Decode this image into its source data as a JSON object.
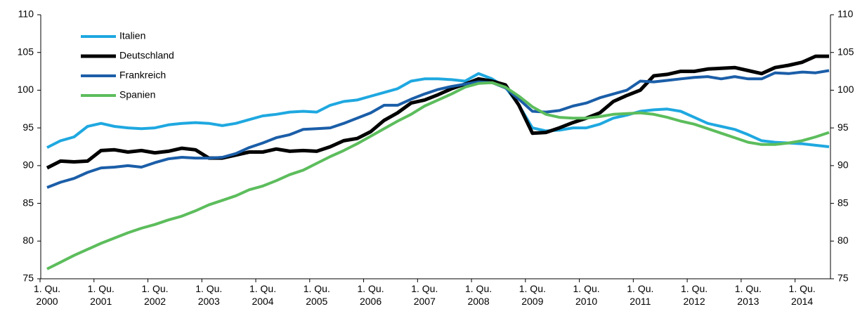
{
  "chart_data": {
    "type": "line",
    "categories": [
      "1. Qu. 2000",
      null,
      null,
      null,
      "1. Qu. 2001",
      null,
      null,
      null,
      "1. Qu. 2002",
      null,
      null,
      null,
      "1. Qu. 2003",
      null,
      null,
      null,
      "1. Qu. 2004",
      null,
      null,
      null,
      "1. Qu. 2005",
      null,
      null,
      null,
      "1. Qu. 2006",
      null,
      null,
      null,
      "1. Qu. 2007",
      null,
      null,
      null,
      "1. Qu. 2008",
      null,
      null,
      null,
      "1. Qu. 2009",
      null,
      null,
      null,
      "1. Qu. 2010",
      null,
      null,
      null,
      "1. Qu. 2011",
      null,
      null,
      null,
      "1. Qu. 2012",
      null,
      null,
      null,
      "1. Qu. 2013",
      null,
      null,
      null,
      "1. Qu. 2014",
      null,
      null
    ],
    "series": [
      {
        "name": "Italien",
        "color": "#1fa8e0",
        "values": [
          92.4,
          93.3,
          93.8,
          95.2,
          95.6,
          95.2,
          95.0,
          94.9,
          95.0,
          95.4,
          95.6,
          95.7,
          95.6,
          95.3,
          95.6,
          96.1,
          96.6,
          96.8,
          97.1,
          97.2,
          97.1,
          98.0,
          98.5,
          98.7,
          99.2,
          99.7,
          100.2,
          101.2,
          101.5,
          101.5,
          101.4,
          101.2,
          102.2,
          101.5,
          100.4,
          98.0,
          95.0,
          94.6,
          94.7,
          95.0,
          95.0,
          95.5,
          96.3,
          96.7,
          97.2,
          97.4,
          97.5,
          97.2,
          96.4,
          95.6,
          95.2,
          94.8,
          94.1,
          93.3,
          93.1,
          93.0,
          92.9,
          92.7,
          92.5
        ]
      },
      {
        "name": "Deutschland",
        "color": "#000000",
        "values": [
          89.7,
          90.6,
          90.5,
          90.6,
          92.0,
          92.1,
          91.8,
          92.0,
          91.7,
          91.9,
          92.3,
          92.1,
          91.0,
          91.0,
          91.4,
          91.8,
          91.8,
          92.2,
          91.9,
          92.0,
          91.9,
          92.5,
          93.3,
          93.6,
          94.5,
          96.0,
          97.0,
          98.3,
          98.7,
          99.4,
          100.2,
          100.8,
          101.5,
          101.2,
          100.7,
          98.0,
          94.3,
          94.4,
          95.0,
          95.7,
          96.3,
          97.0,
          98.5,
          99.3,
          100.0,
          101.9,
          102.1,
          102.5,
          102.5,
          102.8,
          102.9,
          103.0,
          102.6,
          102.2,
          103.0,
          103.3,
          103.7,
          104.5,
          104.5
        ]
      },
      {
        "name": "Frankreich",
        "color": "#1b5ea8",
        "values": [
          87.1,
          87.8,
          88.3,
          89.1,
          89.7,
          89.8,
          90.0,
          89.8,
          90.4,
          90.9,
          91.1,
          91.0,
          91.0,
          91.1,
          91.6,
          92.4,
          93.0,
          93.7,
          94.1,
          94.8,
          94.9,
          95.0,
          95.6,
          96.3,
          97.0,
          98.0,
          98.0,
          98.8,
          99.5,
          100.1,
          100.5,
          100.8,
          101.1,
          101.0,
          100.3,
          98.8,
          97.2,
          97.1,
          97.3,
          97.9,
          98.3,
          99.0,
          99.5,
          100.0,
          101.2,
          101.1,
          101.3,
          101.5,
          101.7,
          101.8,
          101.5,
          101.8,
          101.5,
          101.5,
          102.3,
          102.2,
          102.4,
          102.3,
          102.6
        ]
      },
      {
        "name": "Spanien",
        "color": "#5cbd5c",
        "values": [
          76.3,
          77.2,
          78.1,
          78.9,
          79.7,
          80.4,
          81.1,
          81.7,
          82.2,
          82.8,
          83.3,
          84.0,
          84.8,
          85.4,
          86.0,
          86.8,
          87.3,
          88.0,
          88.8,
          89.4,
          90.3,
          91.2,
          92.0,
          92.9,
          93.9,
          94.9,
          95.9,
          96.8,
          97.9,
          98.7,
          99.5,
          100.4,
          100.9,
          101.0,
          100.4,
          99.2,
          97.8,
          96.8,
          96.4,
          96.3,
          96.3,
          96.5,
          96.8,
          96.9,
          97.0,
          96.8,
          96.4,
          95.9,
          95.5,
          94.9,
          94.3,
          93.7,
          93.1,
          92.8,
          92.8,
          93.0,
          93.3,
          93.8,
          94.4
        ]
      }
    ],
    "ylim": [
      75,
      110
    ],
    "yticks": [
      75,
      80,
      85,
      90,
      95,
      100,
      105,
      110
    ],
    "y2lim": [
      75,
      110
    ],
    "y2ticks": [
      75,
      80,
      85,
      90,
      95,
      100,
      105,
      110
    ],
    "legend": "upper left",
    "grid": false
  }
}
